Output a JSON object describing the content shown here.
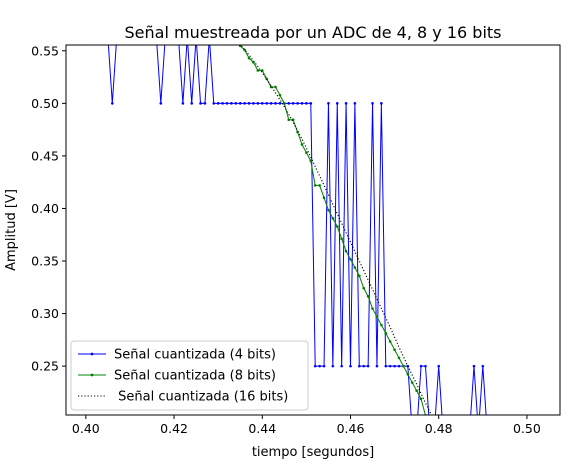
{
  "chart_data": {
    "type": "line",
    "title": "Señal muestreada por un ADC de 4, 8 y 16 bits",
    "xlabel": "tiempo [segundos]",
    "ylabel": "Amplitud [V]",
    "xlim": [
      0.3955,
      0.5075
    ],
    "ylim": [
      0.2035,
      0.5555
    ],
    "xticks": [
      0.4,
      0.42,
      0.44,
      0.46,
      0.48,
      0.5
    ],
    "xtick_labels": [
      "0.40",
      "0.42",
      "0.44",
      "0.46",
      "0.48",
      "0.50"
    ],
    "yticks": [
      0.25,
      0.3,
      0.35,
      0.4,
      0.45,
      0.5,
      0.55
    ],
    "ytick_labels": [
      "0.25",
      "0.30",
      "0.35",
      "0.40",
      "0.45",
      "0.50",
      "0.55"
    ],
    "grid": false,
    "legend": "lower-left",
    "series": [
      {
        "name": "Señal cuantizada (4 bits)",
        "color": "#0000ff",
        "style": "solid-markers",
        "x": [
          0.405,
          0.406,
          0.407,
          0.416,
          0.417,
          0.418,
          0.421,
          0.422,
          0.423,
          0.424,
          0.425,
          0.426,
          0.427,
          0.428,
          0.429,
          0.43,
          0.431,
          0.432,
          0.433,
          0.434,
          0.435,
          0.436,
          0.437,
          0.438,
          0.439,
          0.44,
          0.441,
          0.442,
          0.443,
          0.444,
          0.445,
          0.446,
          0.447,
          0.448,
          0.449,
          0.45,
          0.451,
          0.452,
          0.453,
          0.454,
          0.455,
          0.456,
          0.457,
          0.458,
          0.459,
          0.46,
          0.461,
          0.462,
          0.463,
          0.464,
          0.465,
          0.466,
          0.467,
          0.468,
          0.469,
          0.47,
          0.471,
          0.472,
          0.473,
          0.474,
          0.475,
          0.476,
          0.477,
          0.478,
          0.479,
          0.48,
          0.481,
          0.482,
          0.487,
          0.488,
          0.489,
          0.49,
          0.491
        ],
        "y": [
          0.5625,
          0.5,
          0.5625,
          0.5625,
          0.5,
          0.5625,
          0.5625,
          0.5,
          0.5625,
          0.5,
          0.5625,
          0.5,
          0.5,
          0.5625,
          0.5,
          0.5,
          0.5,
          0.5,
          0.5,
          0.5,
          0.5,
          0.5,
          0.5,
          0.5,
          0.5,
          0.5,
          0.5,
          0.5,
          0.5,
          0.5,
          0.5,
          0.5,
          0.5,
          0.5,
          0.5,
          0.5,
          0.5,
          0.25,
          0.25,
          0.25,
          0.5,
          0.25,
          0.5,
          0.25,
          0.5,
          0.25,
          0.5,
          0.25,
          0.25,
          0.25,
          0.5,
          0.25,
          0.5,
          0.25,
          0.25,
          0.25,
          0.25,
          0.25,
          0.25,
          0.1875,
          0.1875,
          0.25,
          0.25,
          0.1875,
          0.1875,
          0.25,
          0.1875,
          0.1875,
          0.1875,
          0.25,
          0.1875,
          0.25,
          0.1875
        ]
      },
      {
        "name": "Señal cuantizada (8 bits)",
        "color": "#008000",
        "style": "solid-markers",
        "x": [
          0.433,
          0.434,
          0.435,
          0.436,
          0.437,
          0.438,
          0.439,
          0.44,
          0.441,
          0.442,
          0.443,
          0.444,
          0.445,
          0.446,
          0.447,
          0.448,
          0.449,
          0.45,
          0.451,
          0.452,
          0.453,
          0.454,
          0.455,
          0.456,
          0.457,
          0.458,
          0.459,
          0.46,
          0.461,
          0.462,
          0.463,
          0.464,
          0.465,
          0.466,
          0.467,
          0.468,
          0.469,
          0.47,
          0.471,
          0.472,
          0.473,
          0.474,
          0.475,
          0.476,
          0.477,
          0.478
        ],
        "y": [
          0.5625,
          0.559,
          0.5547,
          0.5508,
          0.543,
          0.539,
          0.5313,
          0.5313,
          0.5234,
          0.5156,
          0.5156,
          0.5078,
          0.5,
          0.4844,
          0.4844,
          0.4727,
          0.4609,
          0.4531,
          0.4453,
          0.4219,
          0.4219,
          0.4102,
          0.3984,
          0.3906,
          0.3828,
          0.3711,
          0.3594,
          0.3516,
          0.3438,
          0.3359,
          0.3242,
          0.3164,
          0.3047,
          0.2969,
          0.2891,
          0.2813,
          0.2734,
          0.2656,
          0.2578,
          0.25,
          0.2422,
          0.2344,
          0.2266,
          0.2188,
          0.2031,
          0.1953
        ]
      },
      {
        "name": " Señal cuantizada (16 bits)",
        "color": "#000000",
        "style": "dotted",
        "x": [
          0.433,
          0.435,
          0.437,
          0.439,
          0.441,
          0.443,
          0.445,
          0.447,
          0.449,
          0.451,
          0.453,
          0.455,
          0.457,
          0.459,
          0.461,
          0.463,
          0.465,
          0.467,
          0.469,
          0.471,
          0.473,
          0.475,
          0.477,
          0.479
        ],
        "y": [
          0.562,
          0.556,
          0.546,
          0.535,
          0.523,
          0.51,
          0.497,
          0.482,
          0.466,
          0.449,
          0.431,
          0.413,
          0.395,
          0.377,
          0.359,
          0.341,
          0.323,
          0.305,
          0.287,
          0.268,
          0.25,
          0.233,
          0.215,
          0.198
        ]
      }
    ]
  }
}
